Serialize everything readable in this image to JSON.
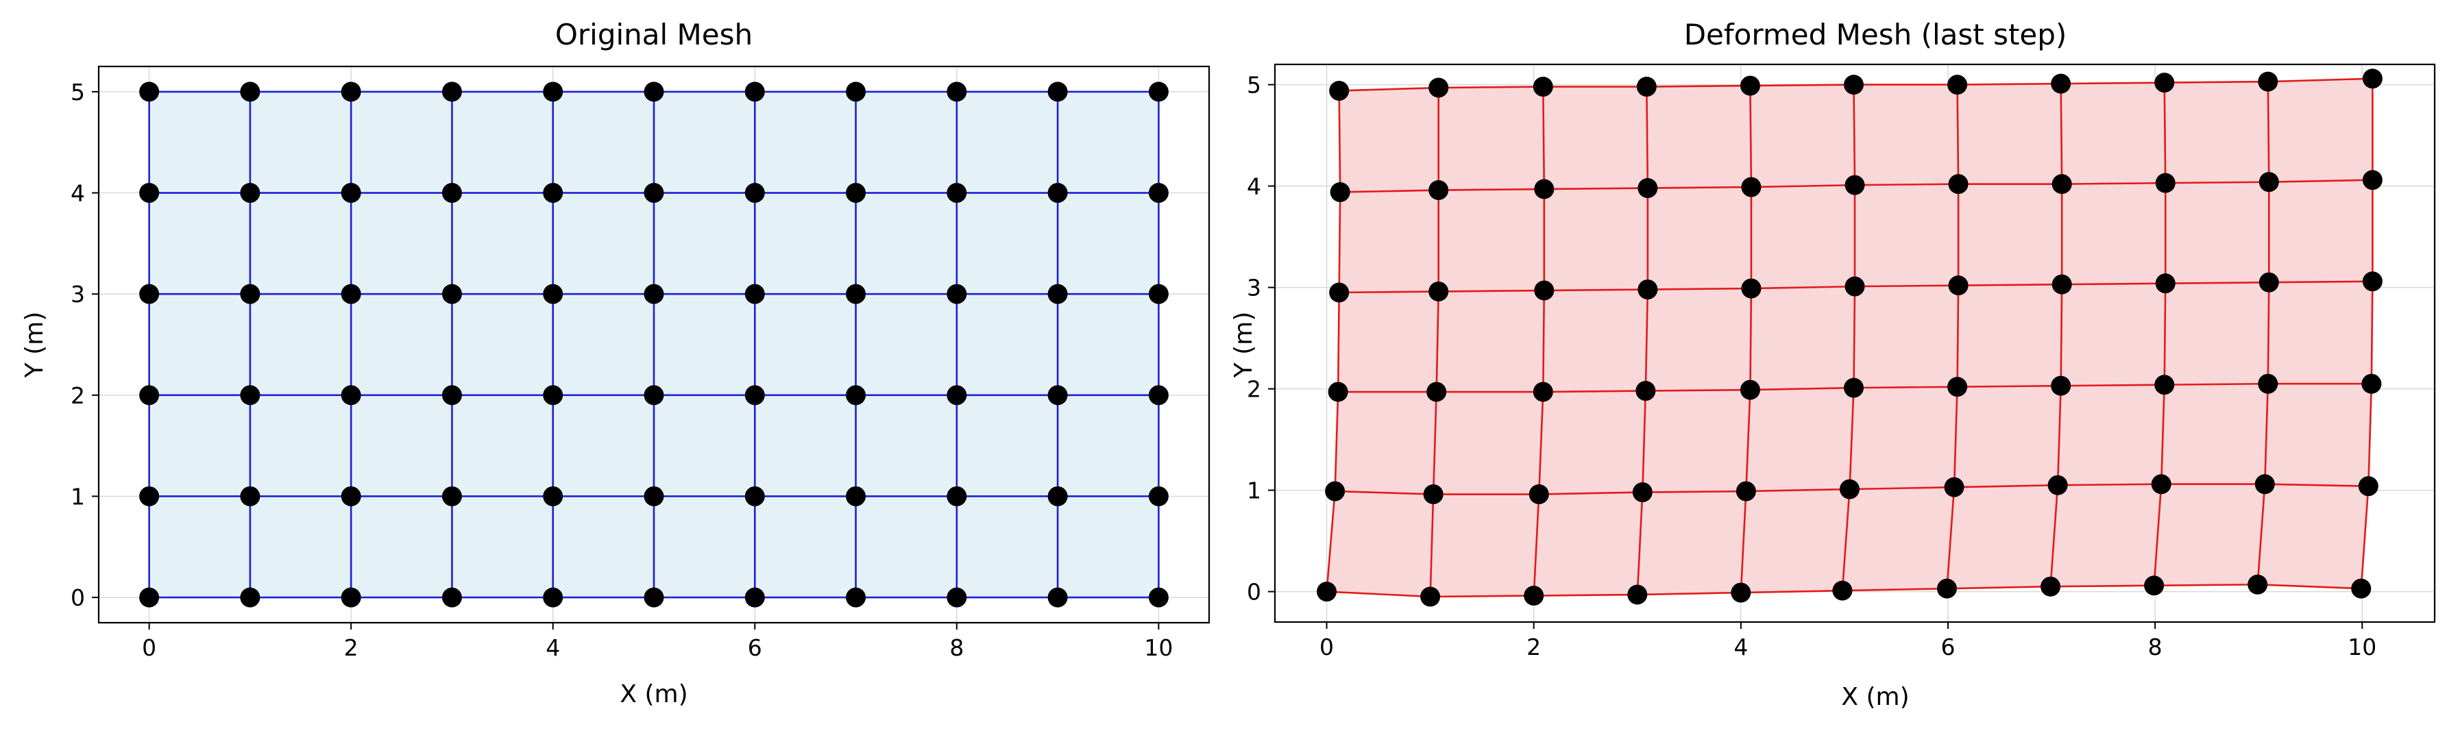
{
  "chart_data": [
    {
      "type": "scatter",
      "title": "Original Mesh",
      "xlabel": "X (m)",
      "ylabel": "Y (m)",
      "xlim": [
        -0.5,
        10.5
      ],
      "ylim": [
        -0.25,
        5.25
      ],
      "xticks": [
        0,
        2,
        4,
        6,
        8,
        10
      ],
      "yticks": [
        0,
        1,
        2,
        3,
        4,
        5
      ],
      "grid": true,
      "fill_color": "#e4f2f8",
      "line_color": "#1f1fd6",
      "node_color": "#000000",
      "series": [
        {
          "nodes_x": [
            [
              0,
              1,
              2,
              3,
              4,
              5,
              6,
              7,
              8,
              9,
              10
            ],
            [
              0,
              1,
              2,
              3,
              4,
              5,
              6,
              7,
              8,
              9,
              10
            ],
            [
              0,
              1,
              2,
              3,
              4,
              5,
              6,
              7,
              8,
              9,
              10
            ],
            [
              0,
              1,
              2,
              3,
              4,
              5,
              6,
              7,
              8,
              9,
              10
            ],
            [
              0,
              1,
              2,
              3,
              4,
              5,
              6,
              7,
              8,
              9,
              10
            ],
            [
              0,
              1,
              2,
              3,
              4,
              5,
              6,
              7,
              8,
              9,
              10
            ]
          ],
          "nodes_y": [
            [
              0,
              0,
              0,
              0,
              0,
              0,
              0,
              0,
              0,
              0,
              0
            ],
            [
              1,
              1,
              1,
              1,
              1,
              1,
              1,
              1,
              1,
              1,
              1
            ],
            [
              2,
              2,
              2,
              2,
              2,
              2,
              2,
              2,
              2,
              2,
              2
            ],
            [
              3,
              3,
              3,
              3,
              3,
              3,
              3,
              3,
              3,
              3,
              3
            ],
            [
              4,
              4,
              4,
              4,
              4,
              4,
              4,
              4,
              4,
              4,
              4
            ],
            [
              5,
              5,
              5,
              5,
              5,
              5,
              5,
              5,
              5,
              5,
              5
            ]
          ]
        }
      ]
    },
    {
      "type": "scatter",
      "title": "Deformed Mesh (last step)",
      "xlabel": "X (m)",
      "ylabel": "Y (m)",
      "xlim": [
        -0.5,
        10.7
      ],
      "ylim": [
        -0.3,
        5.2
      ],
      "xticks": [
        0,
        2,
        4,
        6,
        8,
        10
      ],
      "yticks": [
        0,
        1,
        2,
        3,
        4,
        5
      ],
      "grid": true,
      "fill_color": "#f9d8d9",
      "line_color": "#e31a1a",
      "node_color": "#000000",
      "series": [
        {
          "nodes_x": [
            [
              0.0,
              1.0,
              2.0,
              3.0,
              4.0,
              4.98,
              5.99,
              6.99,
              7.99,
              8.99,
              9.99
            ],
            [
              0.08,
              1.03,
              2.05,
              3.05,
              4.05,
              5.05,
              6.06,
              7.06,
              8.06,
              9.06,
              10.06
            ],
            [
              0.11,
              1.06,
              2.09,
              3.08,
              4.09,
              5.09,
              6.09,
              7.09,
              8.09,
              9.09,
              10.09
            ],
            [
              0.12,
              1.08,
              2.1,
              3.1,
              4.1,
              5.1,
              6.1,
              7.1,
              8.1,
              9.1,
              10.1
            ],
            [
              0.13,
              1.08,
              2.1,
              3.1,
              4.1,
              5.1,
              6.1,
              7.1,
              8.1,
              9.1,
              10.1
            ],
            [
              0.12,
              1.08,
              2.09,
              3.09,
              4.09,
              5.09,
              6.09,
              7.09,
              8.09,
              9.09,
              10.1
            ]
          ],
          "nodes_y": [
            [
              0.0,
              -0.05,
              -0.04,
              -0.03,
              -0.01,
              0.01,
              0.03,
              0.05,
              0.06,
              0.07,
              0.03
            ],
            [
              0.99,
              0.96,
              0.96,
              0.98,
              0.99,
              1.01,
              1.03,
              1.05,
              1.06,
              1.06,
              1.04
            ],
            [
              1.97,
              1.97,
              1.97,
              1.98,
              1.99,
              2.01,
              2.02,
              2.03,
              2.04,
              2.05,
              2.05
            ],
            [
              2.95,
              2.96,
              2.97,
              2.98,
              2.99,
              3.01,
              3.02,
              3.03,
              3.04,
              3.05,
              3.06
            ],
            [
              3.94,
              3.96,
              3.97,
              3.98,
              3.99,
              4.01,
              4.02,
              4.02,
              4.03,
              4.04,
              4.06
            ],
            [
              4.94,
              4.97,
              4.98,
              4.98,
              4.99,
              5.0,
              5.0,
              5.01,
              5.02,
              5.03,
              5.06
            ]
          ]
        }
      ]
    }
  ]
}
